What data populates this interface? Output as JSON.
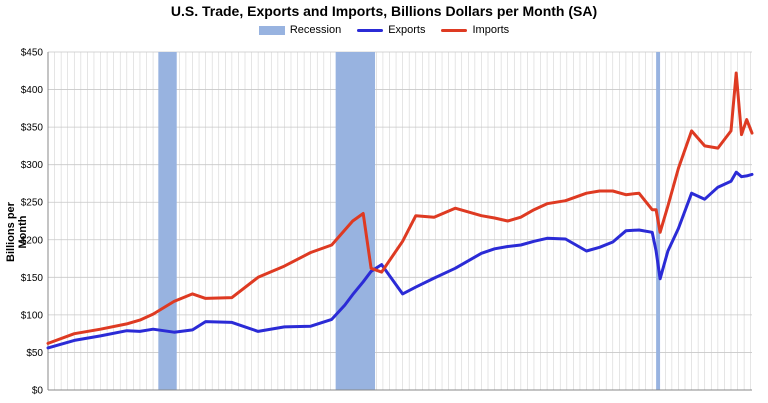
{
  "chart_data": {
    "type": "line",
    "title": "U.S. Trade, Exports and Imports, Billions Dollars per Month (SA)",
    "xlabel": "",
    "ylabel": "Billions per Month",
    "ylim": [
      0,
      450
    ],
    "yticks": [
      "$0",
      "$50",
      "$100",
      "$150",
      "$200",
      "$250",
      "$300",
      "$350",
      "$400",
      "$450"
    ],
    "ytick_values": [
      0,
      50,
      100,
      150,
      200,
      250,
      300,
      350,
      400,
      450
    ],
    "x_range": [
      1997.0,
      2023.8
    ],
    "grid": true,
    "legend": "top-center",
    "legend_labels": [
      "Recession",
      "Exports",
      "Imports"
    ],
    "colors": {
      "recession": "#98b3e0",
      "exports": "#2b2bd6",
      "imports": "#de3a22"
    },
    "recessions": [
      [
        2001.2,
        2001.9
      ],
      [
        2007.95,
        2009.45
      ],
      [
        2020.15,
        2020.3
      ]
    ],
    "series": [
      {
        "name": "Exports",
        "x": [
          1997.0,
          1998.0,
          1999.0,
          2000.0,
          2000.5,
          2001.0,
          2001.8,
          2002.5,
          2003.0,
          2004.0,
          2005.0,
          2006.0,
          2007.0,
          2007.8,
          2008.3,
          2008.6,
          2009.0,
          2009.3,
          2009.7,
          2010.5,
          2011.0,
          2011.7,
          2012.5,
          2013.5,
          2014.0,
          2014.5,
          2015.0,
          2015.5,
          2016.0,
          2016.7,
          2017.5,
          2018.0,
          2018.5,
          2019.0,
          2019.5,
          2020.0,
          2020.15,
          2020.3,
          2020.6,
          2021.0,
          2021.5,
          2022.0,
          2022.5,
          2023.0,
          2023.2,
          2023.4,
          2023.6,
          2023.8
        ],
        "values": [
          56,
          66,
          72,
          79,
          78,
          81,
          77,
          80,
          91,
          90,
          78,
          84,
          85,
          94,
          113,
          127,
          144,
          158,
          167,
          128,
          137,
          149,
          162,
          182,
          188,
          191,
          193,
          198,
          202,
          201,
          185,
          190,
          197,
          212,
          213,
          210,
          185,
          148,
          185,
          215,
          262,
          254,
          270,
          278,
          290,
          284,
          285,
          287
        ]
      },
      {
        "name": "Imports",
        "x": [
          1997.0,
          1998.0,
          1999.0,
          2000.0,
          2000.5,
          2001.0,
          2001.8,
          2002.5,
          2003.0,
          2004.0,
          2005.0,
          2006.0,
          2007.0,
          2007.8,
          2008.3,
          2008.6,
          2009.0,
          2009.3,
          2009.7,
          2010.5,
          2011.0,
          2011.7,
          2012.5,
          2013.5,
          2014.0,
          2014.5,
          2015.0,
          2015.5,
          2016.0,
          2016.7,
          2017.5,
          2018.0,
          2018.5,
          2019.0,
          2019.5,
          2020.0,
          2020.15,
          2020.3,
          2020.6,
          2021.0,
          2021.5,
          2022.0,
          2022.5,
          2023.0,
          2023.2,
          2023.4,
          2023.6,
          2023.8
        ],
        "values": [
          62,
          75,
          81,
          88,
          93,
          101,
          118,
          128,
          122,
          123,
          150,
          165,
          183,
          193,
          213,
          225,
          235,
          162,
          157,
          198,
          232,
          230,
          242,
          232,
          229,
          225,
          230,
          240,
          248,
          252,
          262,
          265,
          265,
          260,
          262,
          240,
          240,
          210,
          245,
          295,
          345,
          325,
          322,
          345,
          422,
          340,
          360,
          342
        ]
      }
    ]
  }
}
